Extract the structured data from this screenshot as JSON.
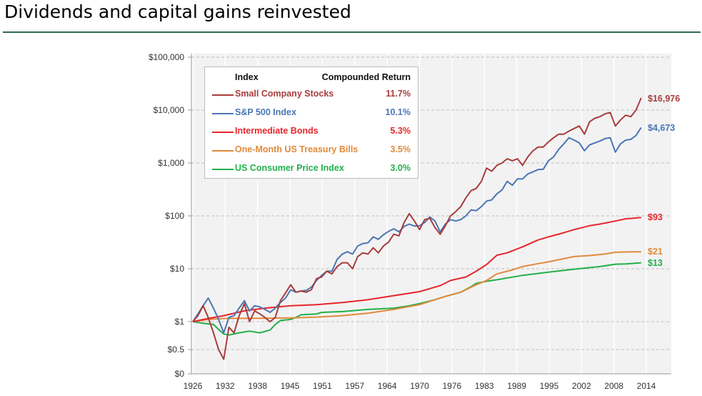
{
  "header": {
    "title": "Dividends and capital gains reinvested"
  },
  "chart_data": {
    "type": "line",
    "title": "",
    "xlabel": "",
    "ylabel": "",
    "y_scale": "log",
    "y_ticks": [
      "$100,000",
      "$10,000",
      "$1,000",
      "$100",
      "$10",
      "$1",
      "$0.5",
      "$0"
    ],
    "y_tick_values": [
      100000,
      10000,
      1000,
      100,
      10,
      1,
      0.5,
      0
    ],
    "x_ticks": [
      "1926",
      "1932",
      "1938",
      "1945",
      "1951",
      "1957",
      "1964",
      "1970",
      "1976",
      "1983",
      "1989",
      "1995",
      "2002",
      "2008",
      "2014"
    ],
    "xlim": [
      1926,
      2014
    ],
    "grid": true,
    "legend_position": "top-left",
    "legend_headers": {
      "index": "Index",
      "return": "Compounded Return"
    },
    "series": [
      {
        "name": "Small Company Stocks",
        "return": "11.7%",
        "end_label": "$16,976",
        "color": "#a83c3c",
        "points": [
          [
            1926,
            1
          ],
          [
            1927,
            1.3
          ],
          [
            1928,
            2.0
          ],
          [
            1929,
            1.2
          ],
          [
            1930,
            0.8
          ],
          [
            1931,
            0.5
          ],
          [
            1932,
            0.3
          ],
          [
            1933,
            0.9
          ],
          [
            1934,
            0.8
          ],
          [
            1935,
            1.3
          ],
          [
            1936,
            2.2
          ],
          [
            1937,
            1.0
          ],
          [
            1938,
            1.6
          ],
          [
            1939,
            1.4
          ],
          [
            1940,
            1.2
          ],
          [
            1941,
            1.0
          ],
          [
            1942,
            1.2
          ],
          [
            1943,
            2.5
          ],
          [
            1944,
            3.5
          ],
          [
            1945,
            5.0
          ],
          [
            1946,
            3.6
          ],
          [
            1947,
            3.8
          ],
          [
            1948,
            3.6
          ],
          [
            1949,
            4.0
          ],
          [
            1950,
            6.5
          ],
          [
            1951,
            7
          ],
          [
            1952,
            9
          ],
          [
            1953,
            8
          ],
          [
            1954,
            11
          ],
          [
            1955,
            13
          ],
          [
            1956,
            13
          ],
          [
            1957,
            10
          ],
          [
            1958,
            17
          ],
          [
            1959,
            20
          ],
          [
            1960,
            19
          ],
          [
            1961,
            25
          ],
          [
            1962,
            20
          ],
          [
            1963,
            27
          ],
          [
            1964,
            32
          ],
          [
            1965,
            45
          ],
          [
            1966,
            42
          ],
          [
            1967,
            75
          ],
          [
            1968,
            110
          ],
          [
            1969,
            80
          ],
          [
            1970,
            55
          ],
          [
            1971,
            85
          ],
          [
            1972,
            90
          ],
          [
            1973,
            60
          ],
          [
            1974,
            45
          ],
          [
            1975,
            65
          ],
          [
            1976,
            100
          ],
          [
            1977,
            120
          ],
          [
            1978,
            150
          ],
          [
            1979,
            220
          ],
          [
            1980,
            300
          ],
          [
            1981,
            330
          ],
          [
            1982,
            450
          ],
          [
            1983,
            800
          ],
          [
            1984,
            700
          ],
          [
            1985,
            900
          ],
          [
            1986,
            1000
          ],
          [
            1987,
            1200
          ],
          [
            1988,
            1100
          ],
          [
            1989,
            1200
          ],
          [
            1990,
            900
          ],
          [
            1991,
            1300
          ],
          [
            1992,
            1700
          ],
          [
            1993,
            2000
          ],
          [
            1994,
            2000
          ],
          [
            1995,
            2500
          ],
          [
            1996,
            3000
          ],
          [
            1997,
            3500
          ],
          [
            1998,
            3500
          ],
          [
            1999,
            4000
          ],
          [
            2000,
            4500
          ],
          [
            2001,
            5000
          ],
          [
            2002,
            3500
          ],
          [
            2003,
            6000
          ],
          [
            2004,
            7000
          ],
          [
            2005,
            7500
          ],
          [
            2006,
            8500
          ],
          [
            2007,
            9000
          ],
          [
            2008,
            5000
          ],
          [
            2009,
            6500
          ],
          [
            2010,
            8000
          ],
          [
            2011,
            7500
          ],
          [
            2012,
            10000
          ],
          [
            2013,
            16976
          ]
        ]
      },
      {
        "name": "S&P 500 Index",
        "return": "10.1%",
        "end_label": "$4,673",
        "color": "#4a76b5",
        "points": [
          [
            1926,
            1
          ],
          [
            1927,
            1.4
          ],
          [
            1928,
            2.0
          ],
          [
            1929,
            2.8
          ],
          [
            1930,
            1.8
          ],
          [
            1931,
            1.1
          ],
          [
            1932,
            0.8
          ],
          [
            1933,
            1.2
          ],
          [
            1934,
            1.3
          ],
          [
            1935,
            1.8
          ],
          [
            1936,
            2.5
          ],
          [
            1937,
            1.6
          ],
          [
            1938,
            2.0
          ],
          [
            1939,
            1.9
          ],
          [
            1940,
            1.7
          ],
          [
            1941,
            1.5
          ],
          [
            1942,
            1.8
          ],
          [
            1943,
            2.3
          ],
          [
            1944,
            2.8
          ],
          [
            1945,
            4.0
          ],
          [
            1946,
            3.6
          ],
          [
            1947,
            3.8
          ],
          [
            1948,
            3.9
          ],
          [
            1949,
            4.5
          ],
          [
            1950,
            6
          ],
          [
            1951,
            7.5
          ],
          [
            1952,
            9
          ],
          [
            1953,
            9
          ],
          [
            1954,
            15
          ],
          [
            1955,
            19
          ],
          [
            1956,
            21
          ],
          [
            1957,
            19
          ],
          [
            1958,
            27
          ],
          [
            1959,
            30
          ],
          [
            1960,
            31
          ],
          [
            1961,
            40
          ],
          [
            1962,
            36
          ],
          [
            1963,
            44
          ],
          [
            1964,
            51
          ],
          [
            1965,
            57
          ],
          [
            1966,
            50
          ],
          [
            1967,
            63
          ],
          [
            1968,
            70
          ],
          [
            1969,
            64
          ],
          [
            1970,
            65
          ],
          [
            1971,
            75
          ],
          [
            1972,
            95
          ],
          [
            1973,
            80
          ],
          [
            1974,
            50
          ],
          [
            1975,
            70
          ],
          [
            1976,
            85
          ],
          [
            1977,
            80
          ],
          [
            1978,
            85
          ],
          [
            1979,
            100
          ],
          [
            1980,
            130
          ],
          [
            1981,
            125
          ],
          [
            1982,
            150
          ],
          [
            1983,
            190
          ],
          [
            1984,
            200
          ],
          [
            1985,
            260
          ],
          [
            1986,
            310
          ],
          [
            1987,
            450
          ],
          [
            1988,
            380
          ],
          [
            1989,
            500
          ],
          [
            1990,
            500
          ],
          [
            1991,
            620
          ],
          [
            1992,
            680
          ],
          [
            1993,
            750
          ],
          [
            1994,
            760
          ],
          [
            1995,
            1100
          ],
          [
            1996,
            1300
          ],
          [
            1997,
            1800
          ],
          [
            1998,
            2300
          ],
          [
            1999,
            3000
          ],
          [
            2000,
            2700
          ],
          [
            2001,
            2400
          ],
          [
            2002,
            1700
          ],
          [
            2003,
            2200
          ],
          [
            2004,
            2400
          ],
          [
            2005,
            2600
          ],
          [
            2006,
            2900
          ],
          [
            2007,
            3000
          ],
          [
            2008,
            1600
          ],
          [
            2009,
            2300
          ],
          [
            2010,
            2700
          ],
          [
            2011,
            2800
          ],
          [
            2012,
            3300
          ],
          [
            2013,
            4673
          ]
        ]
      },
      {
        "name": "Intermediate Bonds",
        "return": "5.3%",
        "end_label": "$93",
        "color": "#e8262a",
        "points": [
          [
            1926,
            1
          ],
          [
            1929,
            1.15
          ],
          [
            1932,
            1.3
          ],
          [
            1936,
            1.6
          ],
          [
            1940,
            1.8
          ],
          [
            1945,
            2.0
          ],
          [
            1950,
            2.1
          ],
          [
            1955,
            2.3
          ],
          [
            1960,
            2.6
          ],
          [
            1965,
            3.1
          ],
          [
            1970,
            3.7
          ],
          [
            1974,
            4.8
          ],
          [
            1976,
            6
          ],
          [
            1979,
            7
          ],
          [
            1981,
            9
          ],
          [
            1983,
            12
          ],
          [
            1985,
            18
          ],
          [
            1987,
            20
          ],
          [
            1990,
            26
          ],
          [
            1993,
            35
          ],
          [
            1995,
            40
          ],
          [
            1998,
            48
          ],
          [
            2000,
            55
          ],
          [
            2003,
            65
          ],
          [
            2005,
            70
          ],
          [
            2008,
            80
          ],
          [
            2010,
            88
          ],
          [
            2013,
            93
          ]
        ]
      },
      {
        "name": "One-Month US Treasury Bills",
        "return": "3.5%",
        "end_label": "$21",
        "color": "#e08a3c",
        "points": [
          [
            1926,
            1
          ],
          [
            1929,
            1.1
          ],
          [
            1932,
            1.15
          ],
          [
            1940,
            1.16
          ],
          [
            1945,
            1.18
          ],
          [
            1950,
            1.22
          ],
          [
            1955,
            1.3
          ],
          [
            1960,
            1.45
          ],
          [
            1965,
            1.7
          ],
          [
            1970,
            2.1
          ],
          [
            1975,
            3.0
          ],
          [
            1978,
            3.6
          ],
          [
            1981,
            5
          ],
          [
            1983,
            6
          ],
          [
            1985,
            8
          ],
          [
            1988,
            9.5
          ],
          [
            1990,
            11
          ],
          [
            1993,
            12.5
          ],
          [
            1995,
            13.5
          ],
          [
            1998,
            15.5
          ],
          [
            2000,
            17
          ],
          [
            2003,
            17.8
          ],
          [
            2006,
            19
          ],
          [
            2008,
            20.5
          ],
          [
            2010,
            20.8
          ],
          [
            2013,
            21
          ]
        ]
      },
      {
        "name": "US Consumer Price Index",
        "return": "3.0%",
        "end_label": "$13",
        "color": "#22b04a",
        "points": [
          [
            1926,
            1
          ],
          [
            1928,
            0.97
          ],
          [
            1930,
            0.95
          ],
          [
            1931,
            0.86
          ],
          [
            1932,
            0.78
          ],
          [
            1933,
            0.76
          ],
          [
            1935,
            0.8
          ],
          [
            1937,
            0.83
          ],
          [
            1939,
            0.8
          ],
          [
            1941,
            0.85
          ],
          [
            1942,
            0.95
          ],
          [
            1943,
            1.05
          ],
          [
            1945,
            1.1
          ],
          [
            1946,
            1.2
          ],
          [
            1947,
            1.35
          ],
          [
            1950,
            1.4
          ],
          [
            1951,
            1.5
          ],
          [
            1955,
            1.55
          ],
          [
            1960,
            1.7
          ],
          [
            1965,
            1.8
          ],
          [
            1968,
            2.0
          ],
          [
            1970,
            2.2
          ],
          [
            1973,
            2.6
          ],
          [
            1975,
            3.0
          ],
          [
            1978,
            3.6
          ],
          [
            1980,
            4.6
          ],
          [
            1981,
            5.3
          ],
          [
            1983,
            5.8
          ],
          [
            1985,
            6.2
          ],
          [
            1990,
            7.5
          ],
          [
            1995,
            8.6
          ],
          [
            2000,
            9.8
          ],
          [
            2005,
            11
          ],
          [
            2008,
            12.2
          ],
          [
            2010,
            12.3
          ],
          [
            2013,
            13
          ]
        ]
      }
    ]
  }
}
